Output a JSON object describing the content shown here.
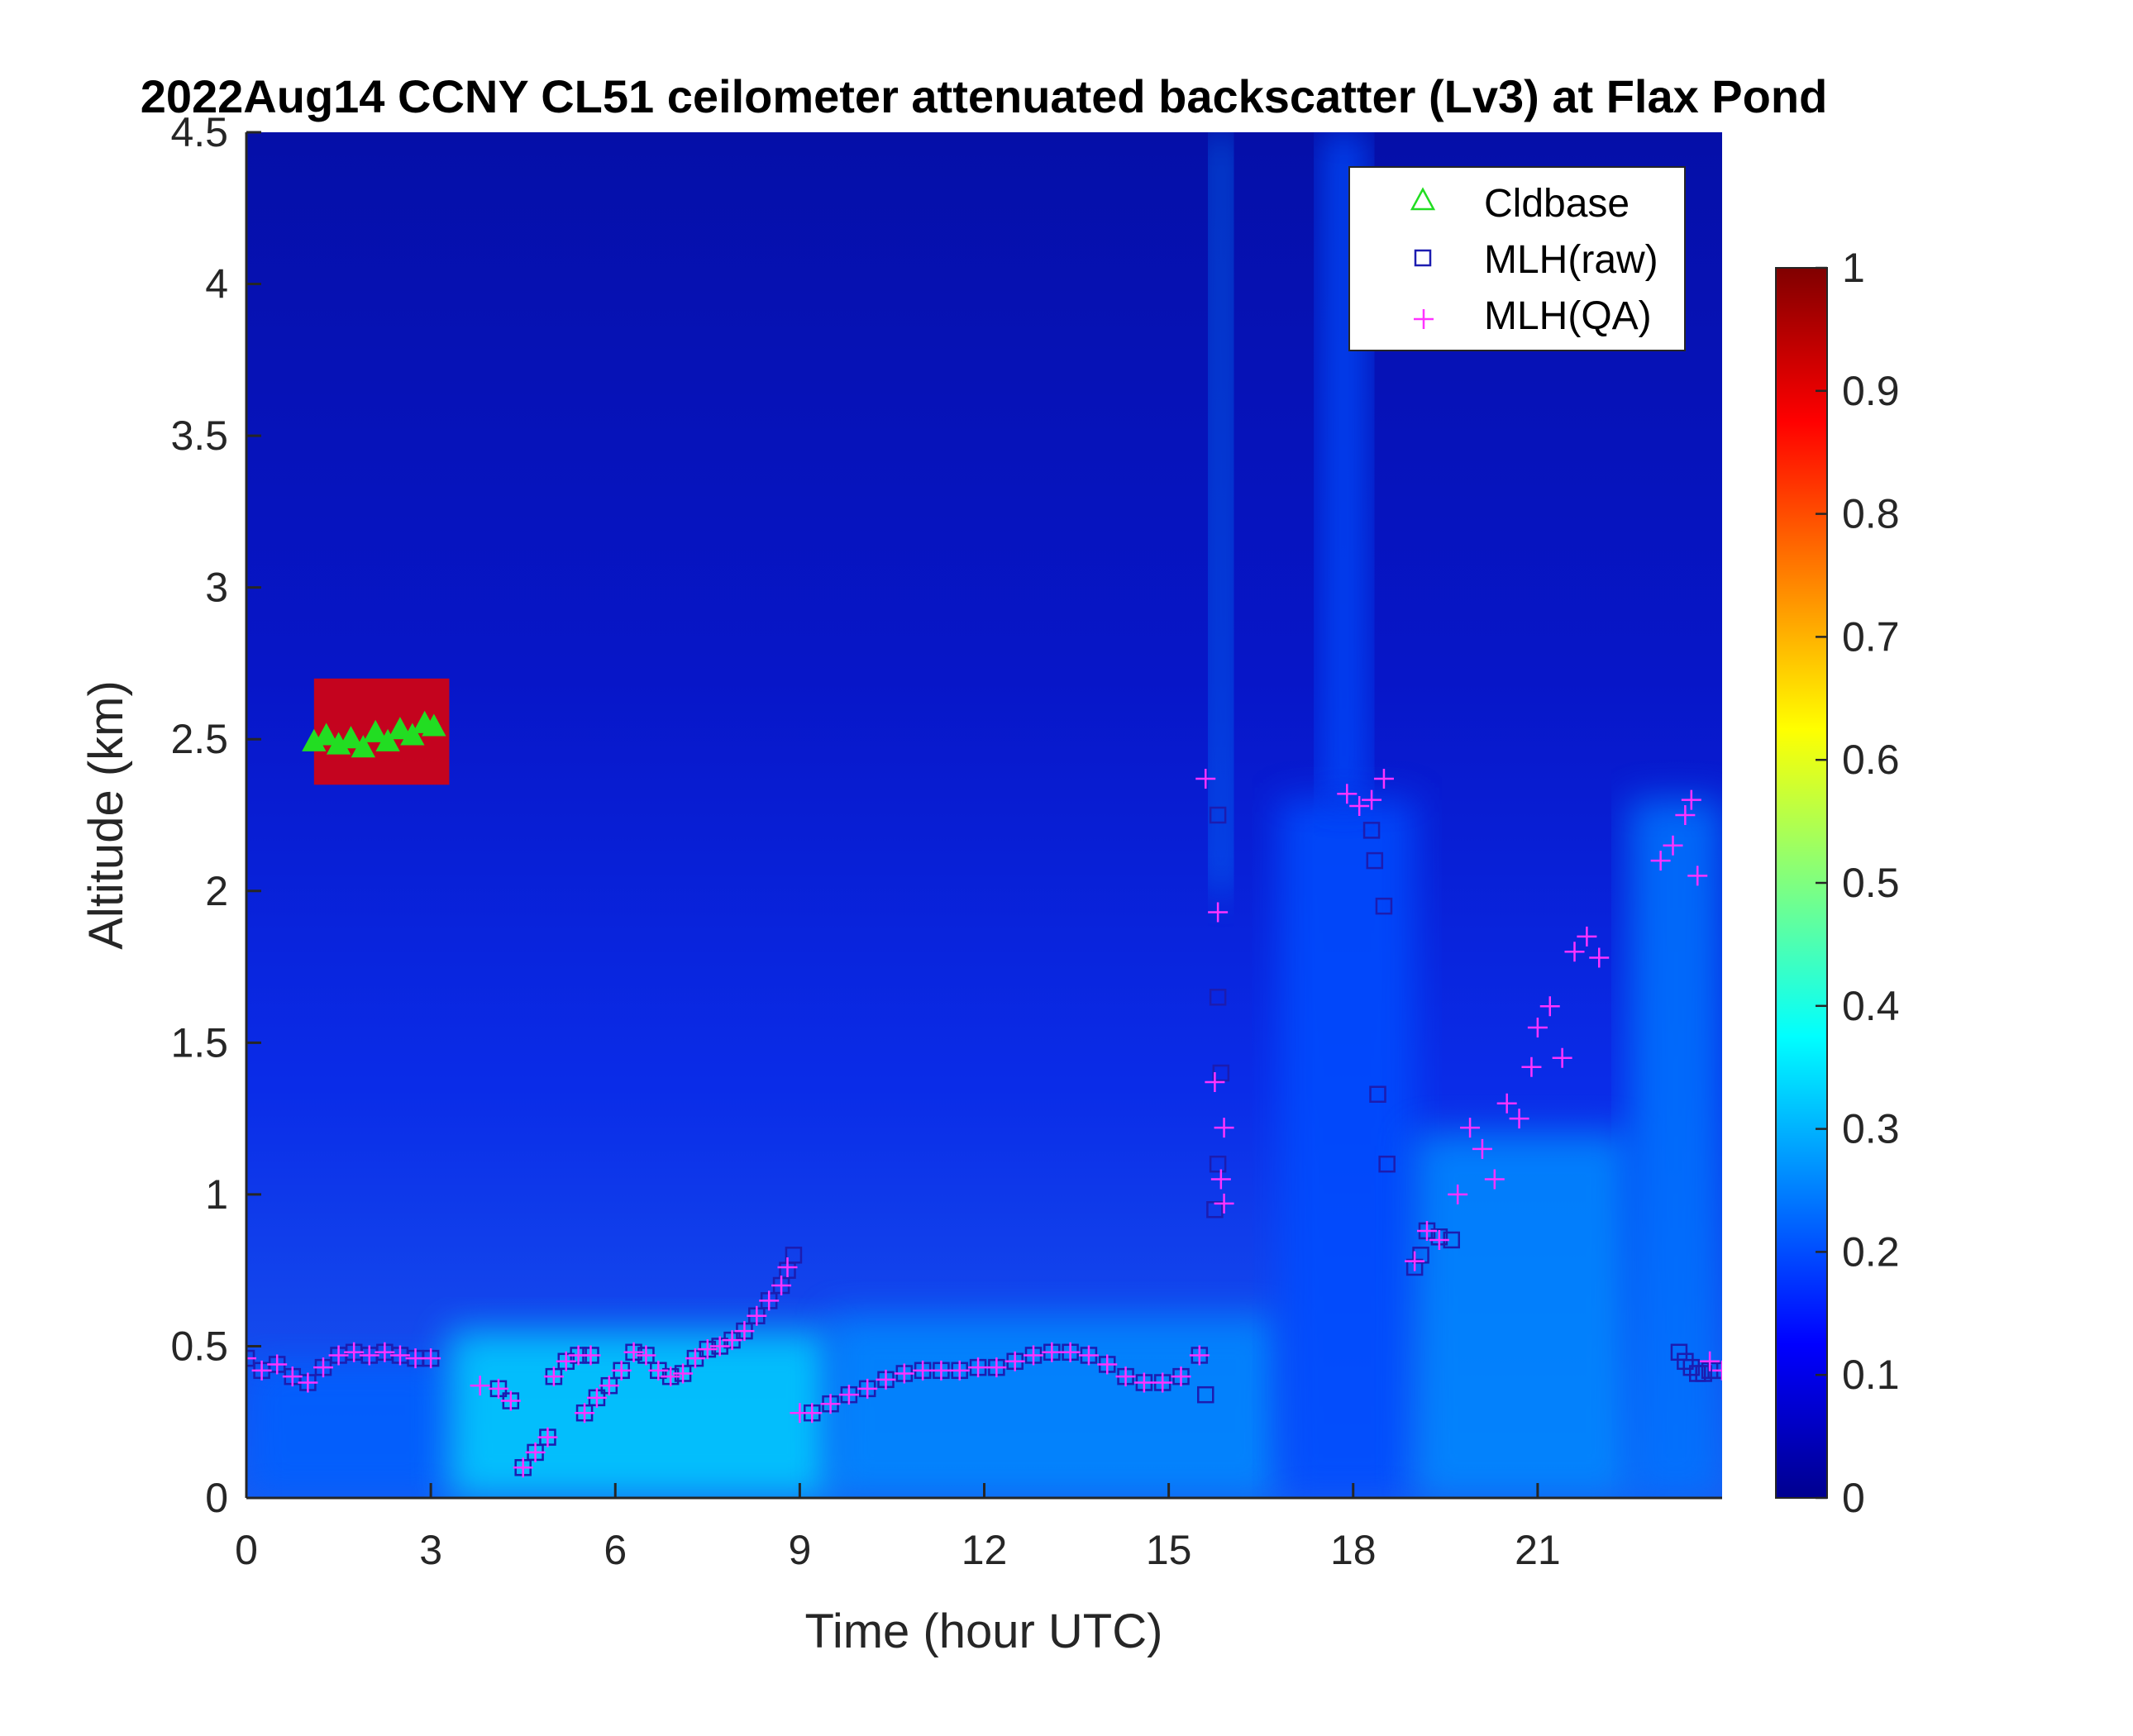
{
  "chart_data": {
    "type": "heatmap",
    "title": "2022Aug14 CCNY CL51 ceilometer attenuated backscatter (Lv3) at Flax Pond",
    "xlabel": "Time (hour UTC)",
    "ylabel": "Altitude (km)",
    "xlim": [
      0,
      24
    ],
    "ylim": [
      0,
      4.5
    ],
    "xticks": [
      "0",
      "3",
      "6",
      "9",
      "12",
      "15",
      "18",
      "21"
    ],
    "xtick_values": [
      0,
      3,
      6,
      9,
      12,
      15,
      18,
      21
    ],
    "yticks": [
      "0",
      "0.5",
      "1",
      "1.5",
      "2",
      "2.5",
      "3",
      "3.5",
      "4",
      "4.5"
    ],
    "ytick_values": [
      0,
      0.5,
      1,
      1.5,
      2,
      2.5,
      3,
      3.5,
      4,
      4.5
    ],
    "colorbar": {
      "colormap": "jet",
      "range": [
        0,
        1
      ],
      "ticks": [
        "0",
        "0.1",
        "0.2",
        "0.3",
        "0.4",
        "0.5",
        "0.6",
        "0.7",
        "0.8",
        "0.9",
        "1"
      ],
      "tick_values": [
        0,
        0.1,
        0.2,
        0.3,
        0.4,
        0.5,
        0.6,
        0.7,
        0.8,
        0.9,
        1
      ]
    },
    "legend": {
      "placement": "top-right",
      "entries": [
        {
          "label": "Cldbase",
          "marker": "triangle",
          "color": "#22dd22"
        },
        {
          "label": "MLH(raw)",
          "marker": "square",
          "color": "#1c1cb0"
        },
        {
          "label": "MLH(QA)",
          "marker": "plus",
          "color": "#ff33ff"
        }
      ]
    },
    "backscatter_regions": [
      {
        "x": [
          0,
          3.3
        ],
        "y": [
          0,
          0.45
        ],
        "value": 0.22
      },
      {
        "x": [
          3.3,
          9.5
        ],
        "y": [
          0,
          0.55
        ],
        "value": 0.33
      },
      {
        "x": [
          9.5,
          16.8
        ],
        "y": [
          0,
          0.6
        ],
        "value": 0.26
      },
      {
        "x": [
          16.8,
          19
        ],
        "y": [
          0,
          2.3
        ],
        "value": 0.2
      },
      {
        "x": [
          19,
          22.5
        ],
        "y": [
          0,
          1.2
        ],
        "value": 0.26
      },
      {
        "x": [
          22.5,
          24
        ],
        "y": [
          0,
          2.3
        ],
        "value": 0.24
      },
      {
        "x": [
          15.7,
          16.0
        ],
        "y": [
          2.0,
          4.5
        ],
        "value": 0.25
      },
      {
        "x": [
          17.5,
          18.2
        ],
        "y": [
          2.3,
          4.5
        ],
        "value": 0.2
      },
      {
        "x": [
          1.1,
          3.3
        ],
        "y": [
          2.35,
          2.7
        ],
        "value": 0.9
      }
    ],
    "series": [
      {
        "name": "Cldbase",
        "x": [
          1.1,
          1.3,
          1.5,
          1.7,
          1.9,
          2.1,
          2.3,
          2.5,
          2.7,
          2.9,
          3.05
        ],
        "y": [
          2.49,
          2.51,
          2.48,
          2.5,
          2.47,
          2.52,
          2.49,
          2.53,
          2.51,
          2.55,
          2.54
        ]
      },
      {
        "name": "MLH(raw)",
        "x": [
          0.0,
          0.25,
          0.5,
          0.75,
          1.0,
          1.25,
          1.5,
          1.75,
          2.0,
          2.25,
          2.5,
          2.75,
          3.0,
          4.1,
          4.3,
          4.5,
          4.7,
          4.9,
          5.0,
          5.2,
          5.4,
          5.6,
          5.5,
          5.7,
          5.9,
          6.1,
          6.3,
          6.5,
          6.7,
          6.9,
          7.1,
          7.3,
          7.5,
          7.7,
          7.9,
          8.1,
          8.3,
          8.5,
          8.7,
          8.8,
          8.9,
          9.2,
          9.5,
          9.8,
          10.1,
          10.4,
          10.7,
          11.0,
          11.3,
          11.6,
          11.9,
          12.2,
          12.5,
          12.8,
          13.1,
          13.4,
          13.7,
          14.0,
          14.3,
          14.6,
          14.9,
          15.2,
          15.5,
          15.6,
          15.8,
          15.8,
          15.85,
          15.8,
          15.75,
          18.3,
          18.35,
          18.4,
          18.5,
          18.55,
          19.0,
          19.1,
          19.2,
          19.4,
          19.6,
          23.3,
          23.4,
          23.5,
          23.6,
          23.7,
          23.8,
          23.9
        ],
        "y": [
          0.46,
          0.42,
          0.44,
          0.4,
          0.38,
          0.43,
          0.47,
          0.48,
          0.47,
          0.48,
          0.47,
          0.46,
          0.46,
          0.36,
          0.32,
          0.1,
          0.15,
          0.2,
          0.4,
          0.45,
          0.47,
          0.47,
          0.28,
          0.33,
          0.37,
          0.42,
          0.48,
          0.47,
          0.42,
          0.4,
          0.41,
          0.46,
          0.49,
          0.5,
          0.52,
          0.55,
          0.6,
          0.65,
          0.7,
          0.75,
          0.8,
          0.28,
          0.31,
          0.34,
          0.36,
          0.39,
          0.41,
          0.42,
          0.42,
          0.42,
          0.43,
          0.43,
          0.45,
          0.47,
          0.48,
          0.48,
          0.47,
          0.44,
          0.4,
          0.38,
          0.38,
          0.4,
          0.47,
          0.34,
          2.25,
          1.65,
          1.4,
          1.1,
          0.95,
          2.2,
          2.1,
          1.33,
          1.95,
          1.1,
          0.76,
          0.8,
          0.88,
          0.86,
          0.85,
          0.48,
          0.45,
          0.43,
          0.41,
          0.41,
          0.42,
          0.42
        ]
      },
      {
        "name": "MLH(QA)",
        "x": [
          0.0,
          0.25,
          0.5,
          0.75,
          1.0,
          1.25,
          1.5,
          1.75,
          2.0,
          2.25,
          2.5,
          2.75,
          3.0,
          3.8,
          4.1,
          4.3,
          4.5,
          4.7,
          4.9,
          5.0,
          5.2,
          5.4,
          5.6,
          5.5,
          5.7,
          5.9,
          6.1,
          6.3,
          6.5,
          6.7,
          6.9,
          7.1,
          7.3,
          7.5,
          7.7,
          7.9,
          8.1,
          8.3,
          8.5,
          8.7,
          8.8,
          9.0,
          9.2,
          9.5,
          9.8,
          10.1,
          10.4,
          10.7,
          11.0,
          11.3,
          11.6,
          11.9,
          12.2,
          12.5,
          12.8,
          13.1,
          13.4,
          13.7,
          14.0,
          14.3,
          14.6,
          14.9,
          15.2,
          15.5,
          15.6,
          15.75,
          15.8,
          15.9,
          15.85,
          15.9,
          17.9,
          18.1,
          18.3,
          18.5,
          19.0,
          19.2,
          19.4,
          19.7,
          19.9,
          20.1,
          20.3,
          20.5,
          20.7,
          20.9,
          21.0,
          21.2,
          21.4,
          21.6,
          21.8,
          22.0,
          23.0,
          23.2,
          23.4,
          23.5,
          23.6,
          23.8,
          24.0
        ],
        "y": [
          0.46,
          0.42,
          0.44,
          0.4,
          0.38,
          0.43,
          0.47,
          0.48,
          0.47,
          0.48,
          0.47,
          0.46,
          0.46,
          0.37,
          0.36,
          0.32,
          0.1,
          0.15,
          0.2,
          0.4,
          0.45,
          0.47,
          0.47,
          0.28,
          0.33,
          0.37,
          0.42,
          0.48,
          0.47,
          0.42,
          0.4,
          0.41,
          0.46,
          0.49,
          0.5,
          0.52,
          0.55,
          0.6,
          0.65,
          0.7,
          0.76,
          0.28,
          0.28,
          0.31,
          0.34,
          0.36,
          0.39,
          0.41,
          0.42,
          0.42,
          0.42,
          0.43,
          0.43,
          0.45,
          0.47,
          0.48,
          0.48,
          0.47,
          0.44,
          0.4,
          0.38,
          0.38,
          0.4,
          0.47,
          2.37,
          1.37,
          1.93,
          1.22,
          1.05,
          0.97,
          2.32,
          2.28,
          2.3,
          2.37,
          0.78,
          0.88,
          0.85,
          1.0,
          1.22,
          1.15,
          1.05,
          1.3,
          1.25,
          1.42,
          1.55,
          1.62,
          1.45,
          1.8,
          1.85,
          1.78,
          2.1,
          2.15,
          2.25,
          2.3,
          2.05,
          0.45,
          0.42
        ]
      }
    ]
  }
}
